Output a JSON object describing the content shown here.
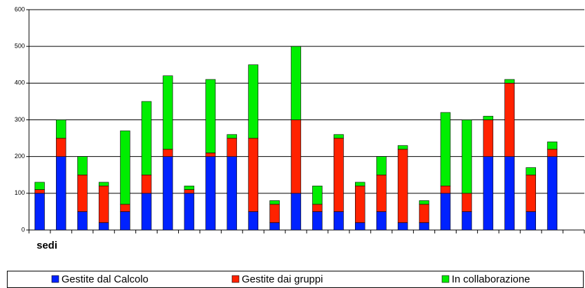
{
  "chart_data": {
    "type": "stacked-bar",
    "x_label": "sedi",
    "categories": [
      null,
      null,
      null,
      null,
      null,
      null,
      null,
      null,
      null,
      null,
      null,
      null,
      null,
      null,
      null,
      null,
      null,
      null,
      null,
      null,
      null,
      null,
      null,
      null,
      null,
      null
    ],
    "series": [
      {
        "name": "Gestite dal Calcolo",
        "color": "#0022ff",
        "values": [
          100,
          200,
          50,
          20,
          50,
          100,
          200,
          100,
          200,
          200,
          50,
          20,
          100,
          50,
          50,
          20,
          50,
          20,
          20,
          100,
          50,
          200,
          200,
          50,
          200,
          null
        ]
      },
      {
        "name": "Gestite dai gruppi",
        "color": "#ff2200",
        "values": [
          10,
          50,
          100,
          100,
          20,
          50,
          20,
          10,
          10,
          50,
          200,
          50,
          200,
          20,
          200,
          100,
          100,
          200,
          50,
          20,
          50,
          100,
          200,
          100,
          20,
          null
        ]
      },
      {
        "name": "In collaborazione",
        "color": "#00ee00",
        "values": [
          20,
          50,
          50,
          10,
          200,
          200,
          200,
          10,
          200,
          10,
          200,
          10,
          200,
          50,
          10,
          10,
          50,
          10,
          10,
          200,
          200,
          10,
          10,
          20,
          20,
          null
        ]
      }
    ],
    "ylim": [
      0,
      600
    ],
    "yticks": [
      0,
      100,
      200,
      300,
      400,
      500,
      600
    ],
    "grid": true
  }
}
